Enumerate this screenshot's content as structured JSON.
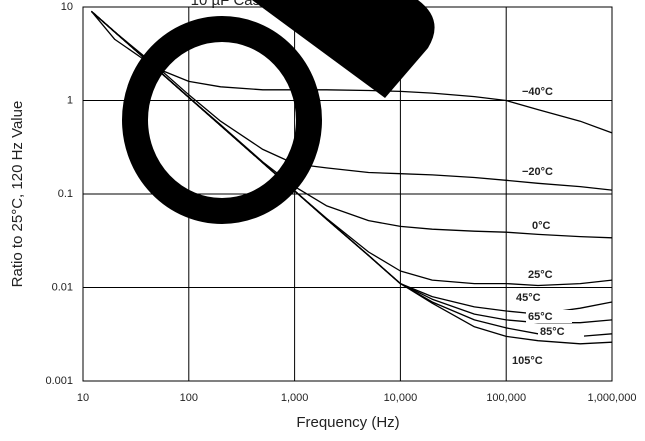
{
  "chart_data": {
    "type": "line",
    "title": "10 µF Case Code (6.3 x 5.5 mm)",
    "x_label": "Frequency (Hz)",
    "y_label": "Ratio to 25°C, 120 Hz Value",
    "log_x": true,
    "log_y": true,
    "grid": true,
    "color": "#000000",
    "x": [
      12,
      20,
      50,
      100,
      200,
      500,
      1000,
      2000,
      5000,
      10000,
      20000,
      50000,
      100000,
      200000,
      500000,
      1000000
    ],
    "series": [
      {
        "name": "−40°C",
        "values": [
          9,
          4.5,
          2.2,
          1.6,
          1.4,
          1.3,
          1.3,
          1.3,
          1.28,
          1.25,
          1.2,
          1.1,
          1.0,
          0.8,
          0.6,
          0.45
        ]
      },
      {
        "name": "−20°C",
        "values": [
          9,
          5.4,
          2.3,
          1.15,
          0.6,
          0.3,
          0.21,
          0.19,
          0.17,
          0.165,
          0.16,
          0.15,
          0.14,
          0.13,
          0.12,
          0.11
        ]
      },
      {
        "name": "0°C",
        "values": [
          9,
          5.4,
          2.16,
          1.08,
          0.55,
          0.22,
          0.12,
          0.075,
          0.052,
          0.045,
          0.042,
          0.04,
          0.039,
          0.037,
          0.035,
          0.034
        ]
      },
      {
        "name": "25°C",
        "values": [
          9,
          5.4,
          2.16,
          1.08,
          0.54,
          0.216,
          0.108,
          0.055,
          0.024,
          0.015,
          0.012,
          0.011,
          0.011,
          0.0105,
          0.011,
          0.012
        ]
      },
      {
        "name": "45°C",
        "values": [
          9,
          5.4,
          2.16,
          1.08,
          0.54,
          0.216,
          0.108,
          0.054,
          0.022,
          0.011,
          0.008,
          0.0062,
          0.0056,
          0.0052,
          0.006,
          0.007
        ]
      },
      {
        "name": "65°C",
        "values": [
          9,
          5.4,
          2.16,
          1.08,
          0.54,
          0.216,
          0.108,
          0.054,
          0.022,
          0.011,
          0.0075,
          0.0052,
          0.0045,
          0.0042,
          0.0042,
          0.0045
        ]
      },
      {
        "name": "85°C",
        "values": [
          9,
          5.4,
          2.16,
          1.08,
          0.54,
          0.216,
          0.108,
          0.054,
          0.022,
          0.011,
          0.007,
          0.0045,
          0.0037,
          0.0032,
          0.003,
          0.0032
        ]
      },
      {
        "name": "105°C",
        "values": [
          9,
          5.4,
          2.16,
          1.08,
          0.54,
          0.216,
          0.108,
          0.054,
          0.022,
          0.011,
          0.0068,
          0.0038,
          0.003,
          0.0027,
          0.0025,
          0.0026
        ]
      }
    ],
    "xlim": [
      10,
      1000000
    ],
    "xticks": [
      10,
      100,
      {
        "value": 1000,
        "label": "1,000"
      },
      {
        "value": 10000,
        "label": "10,000"
      },
      {
        "value": 100000,
        "label": "100,000"
      },
      {
        "value": 1000000,
        "label": "1,000,000"
      }
    ],
    "ylim": [
      0.001,
      10
    ],
    "yticks": [
      0.001,
      0.01,
      0.1,
      1,
      10
    ]
  }
}
